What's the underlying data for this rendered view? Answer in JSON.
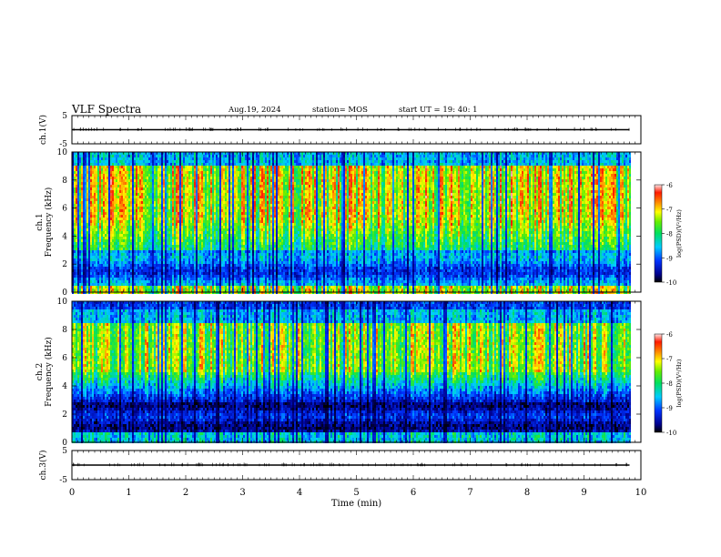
{
  "header": {
    "title": "VLF Spectra",
    "date": "Aug.19, 2024",
    "station": "station= MOS",
    "start_ut": "start UT =  19: 40: 1"
  },
  "chart_data": [
    {
      "type": "line",
      "panel": "ch1-voltage",
      "ylabel": "ch.1(V)",
      "ylim": [
        -5,
        5
      ],
      "y_ticks": [
        "5",
        "-5"
      ],
      "xlim": [
        0,
        10
      ],
      "series": [
        {
          "x": [
            0,
            9.8
          ],
          "values": [
            0,
            0
          ]
        }
      ]
    },
    {
      "type": "heatmap",
      "panel": "ch1-spectrogram",
      "ylabel": "ch.1\nFrequency (kHz)",
      "ylim": [
        0,
        10
      ],
      "y_ticks": [
        "0",
        "2",
        "4",
        "6",
        "8",
        "10"
      ],
      "xlim": [
        0,
        10
      ],
      "data_extent_min": 9.8,
      "colorbar": {
        "label": "log(PSD)(V²/Hz)",
        "range": [
          -10,
          -6
        ],
        "ticks": [
          "-6",
          "-7",
          "-8",
          "-9",
          "-10"
        ]
      }
    },
    {
      "type": "heatmap",
      "panel": "ch2-spectrogram",
      "ylabel": "ch.2\nFrequency (kHz)",
      "ylim": [
        0,
        10
      ],
      "y_ticks": [
        "0",
        "2",
        "4",
        "6",
        "8",
        "10"
      ],
      "xlim": [
        0,
        10
      ],
      "data_extent_min": 9.8,
      "colorbar": {
        "label": "log(PSD)(V²/Hz)",
        "range": [
          -10,
          -6
        ],
        "ticks": [
          "-6",
          "-7",
          "-8",
          "-9",
          "-10"
        ]
      }
    },
    {
      "type": "line",
      "panel": "ch3-voltage",
      "ylabel": "ch.3(V)",
      "ylim": [
        -5,
        5
      ],
      "y_ticks": [
        "5",
        "-5"
      ],
      "xlim": [
        0,
        10
      ],
      "series": [
        {
          "x": [
            0,
            9.8
          ],
          "values": [
            0,
            0
          ]
        }
      ]
    }
  ],
  "xaxis": {
    "label": "Time (min)",
    "ticks": [
      "0",
      "1",
      "2",
      "3",
      "4",
      "5",
      "6",
      "7",
      "8",
      "9",
      "10"
    ]
  }
}
